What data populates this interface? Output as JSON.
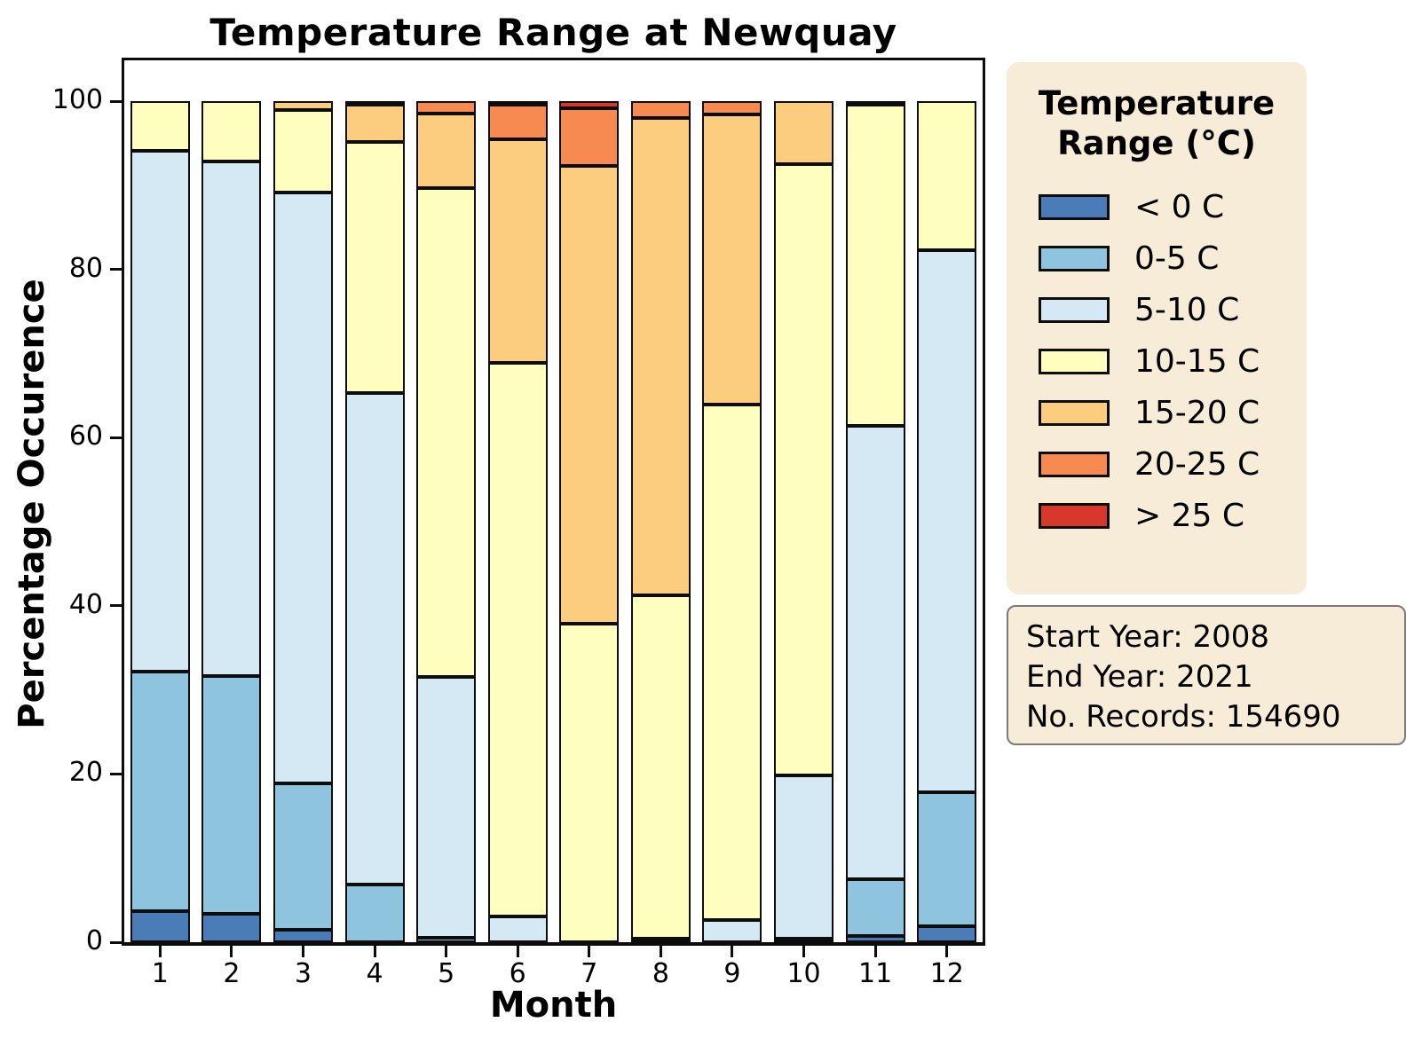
{
  "title": "Temperature Range at Newquay",
  "axes": {
    "x_label": "Month",
    "y_label": "Percentage Occurence",
    "y_ticks": [
      0,
      20,
      40,
      60,
      80,
      100
    ],
    "x_tick_labels": [
      "1",
      "2",
      "3",
      "4",
      "5",
      "6",
      "7",
      "8",
      "9",
      "10",
      "11",
      "12"
    ]
  },
  "legend": {
    "title_line1": "Temperature",
    "title_line2": "Range (°C)",
    "background": "#f7ecd7"
  },
  "info_box": {
    "background": "#f7ecd7",
    "lines": [
      "Start Year: 2008",
      "End Year: 2021",
      "No. Records: 154690"
    ]
  },
  "chart_data": {
    "type": "bar",
    "stacked": true,
    "title": "Temperature Range at Newquay",
    "xlabel": "Month",
    "ylabel": "Percentage Occurence",
    "ylim": [
      0,
      100
    ],
    "grid": false,
    "legend_position": "right",
    "bar_edge_color": "#0d0d0d",
    "categories": [
      1,
      2,
      3,
      4,
      5,
      6,
      7,
      8,
      9,
      10,
      11,
      12
    ],
    "series": [
      {
        "name": "< 0 C",
        "color": "#4a7db7",
        "values": [
          3.7,
          3.4,
          1.5,
          0,
          0,
          0,
          0,
          0,
          0,
          0,
          0.7,
          1.9
        ]
      },
      {
        "name": "0-5 C",
        "color": "#8ec4dd",
        "values": [
          28.5,
          28.2,
          17.4,
          6.9,
          0.5,
          0,
          0,
          0,
          0,
          0.4,
          6.8,
          15.9
        ]
      },
      {
        "name": "5-10 C",
        "color": "#d4e9f3",
        "values": [
          61.9,
          61.2,
          70.2,
          58.4,
          31.0,
          3.1,
          0,
          0.4,
          2.6,
          19.4,
          53.9,
          64.5
        ]
      },
      {
        "name": "10-15 C",
        "color": "#feffbe",
        "values": [
          5.9,
          7.2,
          9.9,
          29.9,
          58.2,
          65.8,
          37.9,
          40.8,
          61.3,
          72.7,
          38.2,
          17.7
        ]
      },
      {
        "name": "15-20 C",
        "color": "#fccd7e",
        "values": [
          0,
          0,
          1.0,
          4.4,
          8.8,
          26.6,
          54.4,
          56.8,
          34.5,
          7.5,
          0.4,
          0
        ]
      },
      {
        "name": "20-25 C",
        "color": "#f78a51",
        "values": [
          0,
          0,
          0,
          0.4,
          1.5,
          4.1,
          6.9,
          2.0,
          1.6,
          0,
          0,
          0
        ]
      },
      {
        "name": "> 25 C",
        "color": "#d7382b",
        "values": [
          0,
          0,
          0,
          0,
          0,
          0.4,
          0.8,
          0,
          0,
          0,
          0,
          0
        ]
      }
    ]
  }
}
